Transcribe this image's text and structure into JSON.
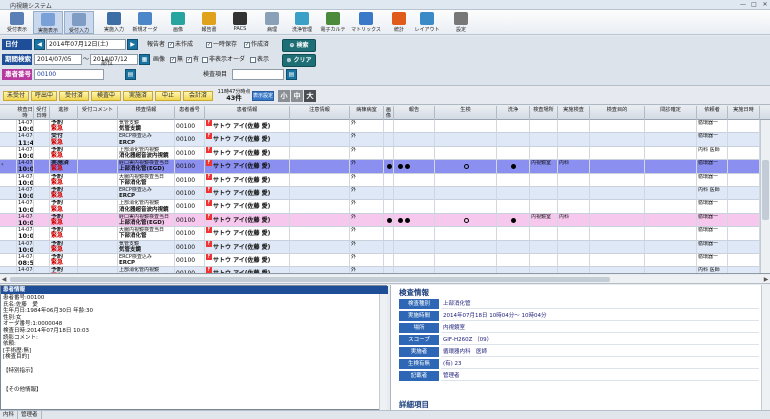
{
  "window": {
    "title": "内視鏡システム",
    "controls": [
      "—",
      "□",
      "✕"
    ]
  },
  "toolbar": {
    "buttons": [
      {
        "label": "受付表示",
        "icon": "reception-icon",
        "color": "#5a7fb6"
      },
      {
        "label": "実施表示",
        "icon": "execution-view-icon",
        "color": "#7aa0d8",
        "selected": true
      },
      {
        "label": "受付入力",
        "icon": "reception-input-icon",
        "color": "#7f9cc4",
        "selected": true
      },
      {
        "label": "実施入力",
        "icon": "execution-input-icon",
        "color": "#3d6ea5"
      },
      {
        "label": "新規オーダ",
        "icon": "new-order-icon",
        "color": "#4a86c8"
      },
      {
        "label": "画像",
        "icon": "image-icon",
        "color": "#27a3a0"
      },
      {
        "label": "報告書",
        "icon": "report-icon",
        "color": "#e0a21a"
      },
      {
        "label": "PACS",
        "icon": "pacs-icon",
        "color": "#333333"
      },
      {
        "label": "病理",
        "icon": "pathology-icon",
        "color": "#8aa0b8"
      },
      {
        "label": "洗浄管理",
        "icon": "wash-icon",
        "color": "#3aa0c8"
      },
      {
        "label": "電子カルテ",
        "icon": "emr-icon",
        "color": "#4a8a3a"
      },
      {
        "label": "マトリックス",
        "icon": "matrix-icon",
        "color": "#3a78c8"
      },
      {
        "label": "統計",
        "icon": "stats-icon",
        "color": "#e05a1a"
      },
      {
        "label": "レイアウト",
        "icon": "layout-icon",
        "color": "#3a8ac8"
      },
      {
        "label": "設定",
        "icon": "settings-icon",
        "color": "#777777"
      }
    ]
  },
  "filter": {
    "date_label": "日付",
    "date_value": "2014年07月12日(土)",
    "reporter_label": "報告者",
    "chk_unmade": "未作成",
    "chk_temp": "一時保存",
    "chk_done": "作成済",
    "search_btn": "検索",
    "period_label": "期間検索",
    "period_from": "2014/07/05",
    "period_sep": "～",
    "period_to": "2014/07/12",
    "image_label": "画像",
    "chk_none": "無",
    "chk_has": "有",
    "chk_hide_label": "非表示オーダ",
    "chk_show": "表示",
    "clear_btn": "クリア",
    "patient_label": "患者番号",
    "patient_value": "00100",
    "dept_label": "部位",
    "exam_label": "検査項目"
  },
  "status_buttons": [
    "未受付",
    "呼出中",
    "受付済",
    "検査中",
    "実施済",
    "中止",
    "会計済"
  ],
  "summary": {
    "time": "11時47分時点",
    "count": "43件",
    "view_btn": "表示設定",
    "sizes": [
      "小",
      "中",
      "大"
    ]
  },
  "grid": {
    "columns": [
      "検査日時",
      "受付日時",
      "進捗",
      "受付コメント",
      "検査情報",
      "患者番号",
      "患者情報",
      "注意情報",
      "病棟病室",
      "画像",
      "報告",
      "生検",
      "洗浄",
      "検査場所",
      "実施検査",
      "検査目的",
      "問診確定",
      "依頼者",
      "実施日時"
    ],
    "rows": [
      {
        "n": "",
        "date": "14-07-1",
        "time": "10:04",
        "st1": "予約",
        "st2": "緊急",
        "info1": "気管支鏡",
        "info2": "気管支鏡",
        "pid": "00100",
        "pname": "サトウ アイ(佐藤 愛)",
        "ward": "外",
        "img": "",
        "rep": "",
        "bio": "",
        "wash": "",
        "place": "",
        "exam": "",
        "req": "循環器一"
      },
      {
        "n": "",
        "date": "14-07-1",
        "time": "11:44",
        "st1": "受付",
        "st2": "緊急",
        "info1": "ERCP検査込み",
        "info2": "ERCP",
        "pid": "00100",
        "pname": "サトウ アイ(佐藤 愛)",
        "ward": "外",
        "img": "",
        "rep": "",
        "bio": "",
        "wash": "",
        "place": "",
        "exam": "",
        "req": "循環器一"
      },
      {
        "n": "",
        "date": "14-07-1",
        "time": "10:04",
        "st1": "予約",
        "st2": "緊急",
        "info1": "上部消化管内視鏡",
        "info2": "消化器超音波内視鏡",
        "pid": "00100",
        "pname": "サトウ アイ(佐藤 愛)",
        "ward": "外",
        "img": "",
        "rep": "",
        "bio": "",
        "wash": "",
        "place": "",
        "exam": "",
        "req": "内科 医師"
      },
      {
        "n": "*",
        "date": "14-07-1",
        "time": "10:03",
        "st1": "実施済",
        "st2": "緊急",
        "info1": "経口実内視鏡検査当日",
        "info2": "上部消化管(EGD)",
        "pid": "00100",
        "pname": "サトウ アイ(佐藤 愛)",
        "ward": "外",
        "img": "●",
        "rep": "●",
        "bio": "○",
        "wash": "●",
        "place": "内視鏡室",
        "exam": "内科",
        "req": "循環器一"
      },
      {
        "n": "",
        "date": "14-07-1",
        "time": "10:04",
        "st1": "予約",
        "st2": "緊急",
        "info1": "大腸内視鏡検査当日",
        "info2": "下部消化管",
        "pid": "00100",
        "pname": "サトウ アイ(佐藤 愛)",
        "ward": "外",
        "img": "",
        "rep": "",
        "bio": "",
        "wash": "",
        "place": "",
        "exam": "",
        "req": "循環器一"
      },
      {
        "n": "",
        "date": "14-07-1",
        "time": "10:04",
        "st1": "予約",
        "st2": "緊急",
        "info1": "ERCP検査込み",
        "info2": "ERCP",
        "pid": "00100",
        "pname": "サトウ アイ(佐藤 愛)",
        "ward": "外",
        "img": "",
        "rep": "",
        "bio": "",
        "wash": "",
        "place": "",
        "exam": "",
        "req": "内科 医師"
      },
      {
        "n": "",
        "date": "14-07-1",
        "time": "10:04",
        "st1": "予約",
        "st2": "緊急",
        "info1": "上部消化管内視鏡",
        "info2": "消化器超音波内視鏡",
        "pid": "00100",
        "pname": "サトウ アイ(佐藤 愛)",
        "ward": "外",
        "img": "",
        "rep": "",
        "bio": "",
        "wash": "",
        "place": "",
        "exam": "",
        "req": "循環器一"
      },
      {
        "n": "",
        "date": "14-07-1",
        "time": "10:00",
        "st1": "予約",
        "st2": "緊急",
        "info1": "経口実内視鏡検査当日",
        "info2": "上部消化管(EGD)",
        "pid": "00100",
        "pname": "サトウ アイ(佐藤 愛)",
        "ward": "外",
        "img": "●",
        "rep": "●",
        "bio": "○",
        "wash": "●",
        "place": "内視鏡室",
        "exam": "内科",
        "req": "循環器一"
      },
      {
        "n": "",
        "date": "14-07-1",
        "time": "10:04",
        "st1": "予約",
        "st2": "緊急",
        "info1": "大腸内視鏡検査当日",
        "info2": "下部消化管",
        "pid": "00100",
        "pname": "サトウ アイ(佐藤 愛)",
        "ward": "外",
        "img": "",
        "rep": "",
        "bio": "",
        "wash": "",
        "place": "",
        "exam": "",
        "req": "循環器一"
      },
      {
        "n": "",
        "date": "14-07-1",
        "time": "10:04",
        "st1": "予約",
        "st2": "緊急",
        "info1": "気管支鏡",
        "info2": "気管支鏡",
        "pid": "00100",
        "pname": "サトウ アイ(佐藤 愛)",
        "ward": "外",
        "img": "",
        "rep": "",
        "bio": "",
        "wash": "",
        "place": "",
        "exam": "",
        "req": "循環器一"
      },
      {
        "n": "",
        "date": "14-07-1",
        "time": "08:58",
        "st1": "予約",
        "st2": "緊急",
        "info1": "ERCP検査込み",
        "info2": "ERCP",
        "pid": "00100",
        "pname": "サトウ アイ(佐藤 愛)",
        "ward": "外",
        "img": "",
        "rep": "",
        "bio": "",
        "wash": "",
        "place": "",
        "exam": "",
        "req": "循環器一"
      },
      {
        "n": "",
        "date": "14-07-1",
        "time": "10:04",
        "st1": "予約",
        "st2": "緊急",
        "info1": "上部消化管内視鏡",
        "info2": "消化器超音波内視鏡",
        "pid": "00100",
        "pname": "サトウ アイ(佐藤 愛)",
        "ward": "外",
        "img": "",
        "rep": "",
        "bio": "",
        "wash": "",
        "place": "",
        "exam": "",
        "req": "内科 医師"
      }
    ]
  },
  "patient_panel": {
    "title": "患者情報",
    "lines": [
      "患者番号:00100",
      "氏名:佐藤　愛",
      "生年月日:1984年06月30日 年齢:30",
      "性別:女",
      "オーダ番号:1:0000048",
      "検査日時:2014年07月18日 10:03",
      "読影コメント:",
      "依頼:",
      "[手術歴:無]",
      "[検査目的]",
      "",
      "【特別指示】",
      "",
      "",
      "【その他情報】"
    ]
  },
  "exam_panel": {
    "title": "検査情報",
    "rows": [
      {
        "k": "検査種別",
        "v": "上部消化管"
      },
      {
        "k": "実施時間",
        "v": "2014年07月18日 10時04分～ 10時04分"
      },
      {
        "k": "場所",
        "v": "内視鏡室"
      },
      {
        "k": "スコープ",
        "v": "GIF-H260Z （09）"
      },
      {
        "k": "実施者",
        "v": "循環器内科　医師"
      },
      {
        "k": "生検有無",
        "v": "(有) 23"
      },
      {
        "k": "記載者",
        "v": "管理者"
      }
    ],
    "sub_title": "詳細項目"
  },
  "statusbar": [
    "内科",
    "管理者"
  ]
}
